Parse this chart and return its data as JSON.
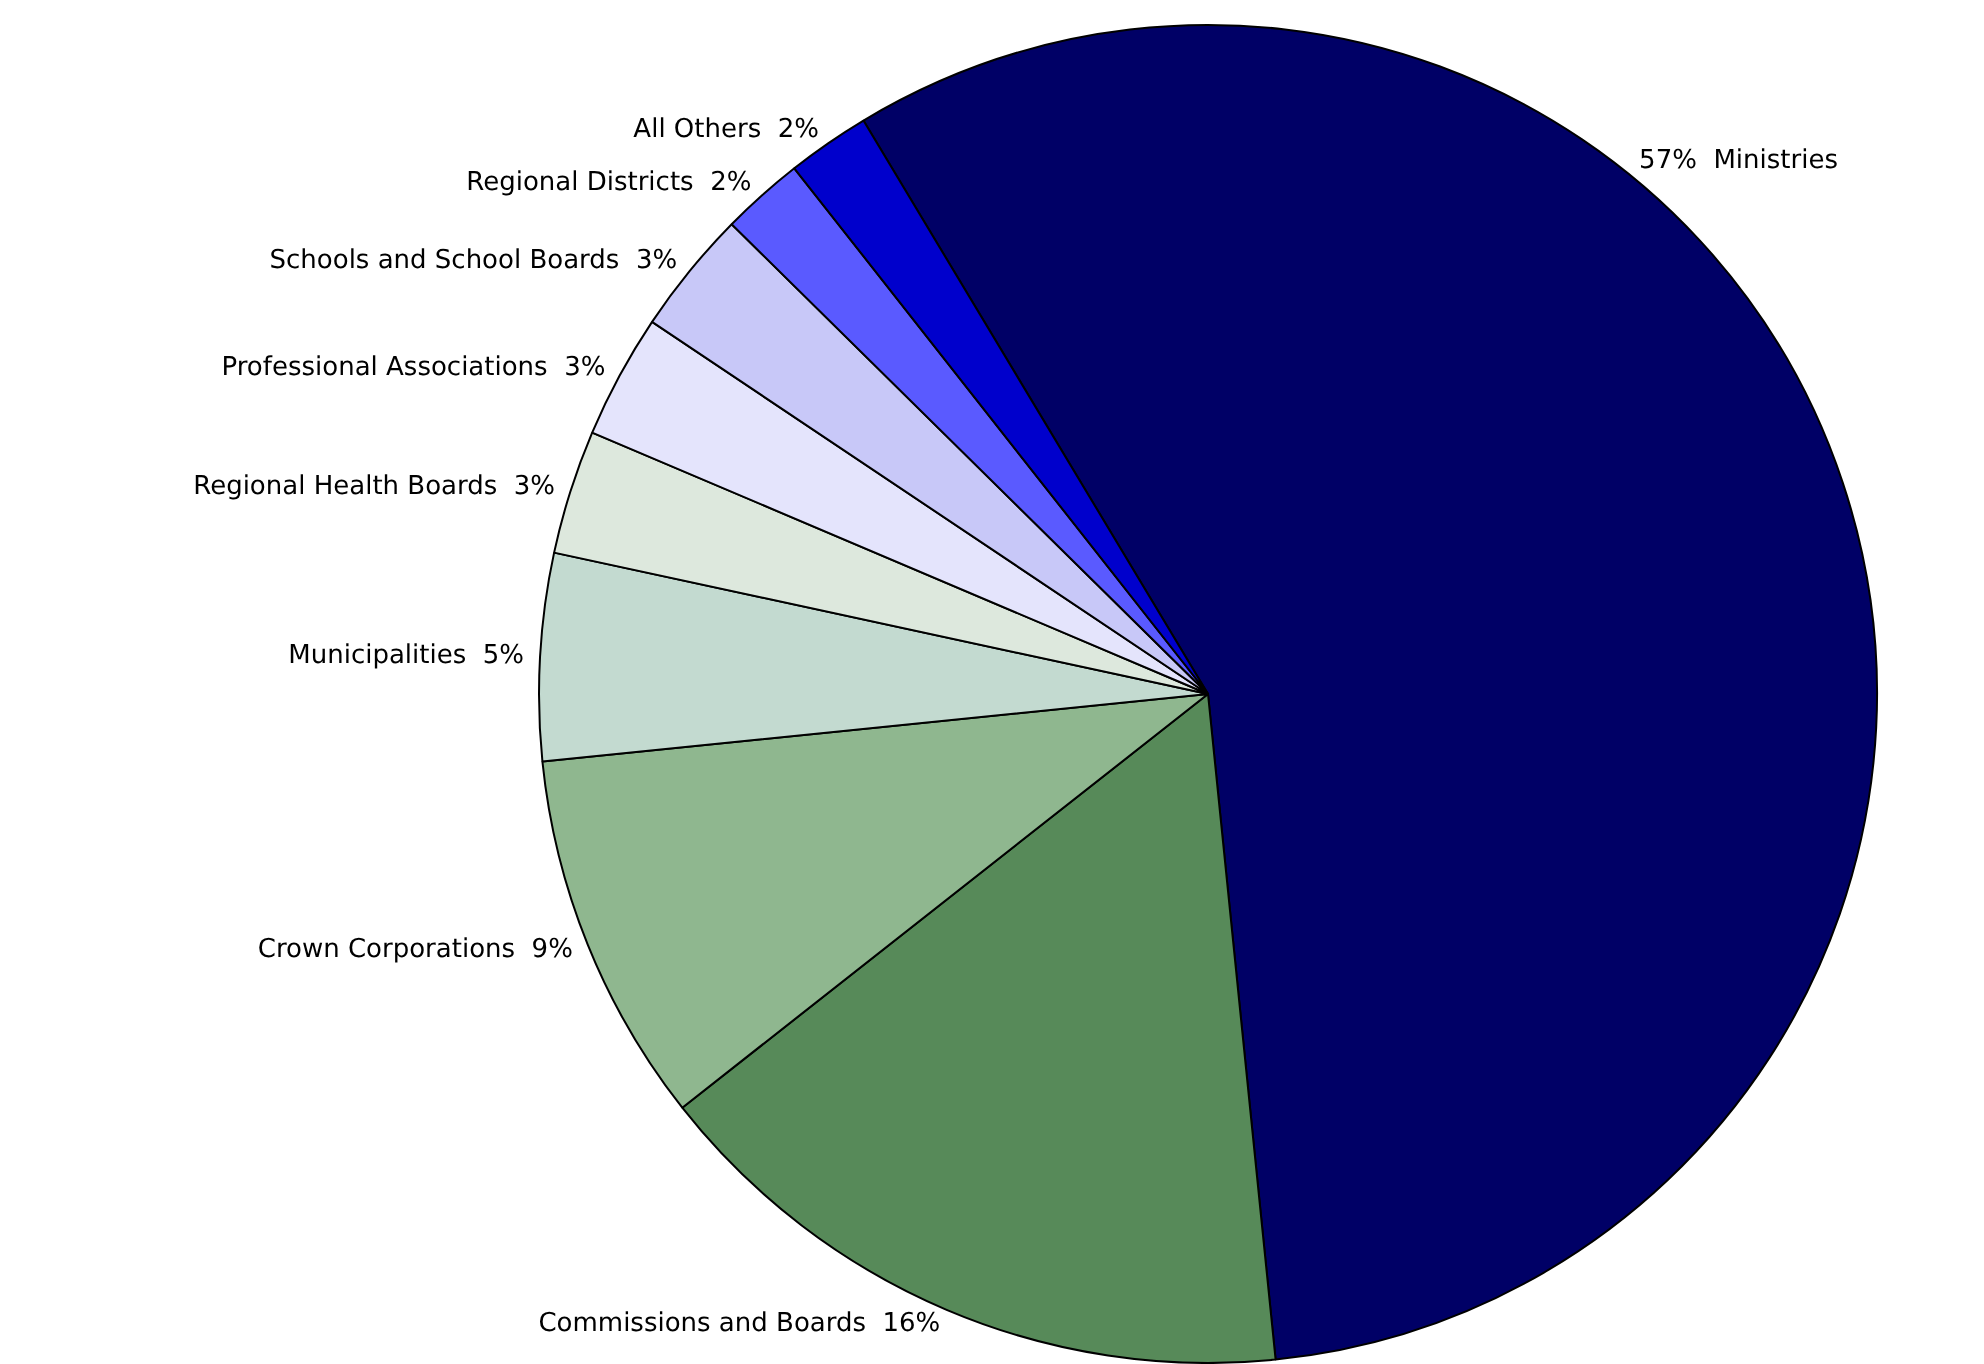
{
  "chart_data": {
    "type": "pie",
    "categories": [
      "Ministries",
      "Commissions and Boards",
      "Crown Corporations",
      "Municipalities",
      "Regional Health Boards",
      "Professional Associations",
      "Schools and School Boards",
      "Regional Districts",
      "All Others"
    ],
    "values": [
      57,
      16,
      9,
      5,
      3,
      3,
      3,
      2,
      2
    ],
    "value_labels": [
      "57%",
      "16%",
      "9%",
      "5%",
      "3%",
      "3%",
      "3%",
      "2%",
      "2%"
    ],
    "colors": [
      "#000066",
      "#578a59",
      "#8fb78f",
      "#c3dad0",
      "#dde8dd",
      "#e4e4fc",
      "#c8c8f8",
      "#5a5aff",
      "#0000cc"
    ],
    "legend": false
  }
}
